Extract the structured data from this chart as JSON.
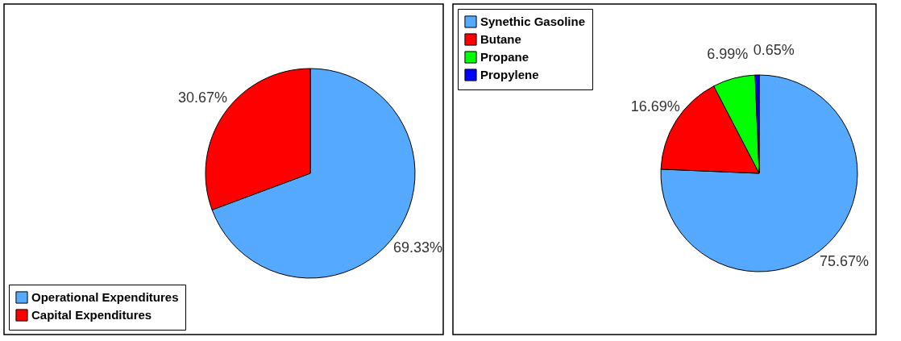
{
  "chart_data": [
    {
      "type": "pie",
      "categories": [
        "Operational Expenditures",
        "Capital Expenditures"
      ],
      "values": [
        69.33,
        30.67
      ],
      "colors": [
        "#55aaff",
        "#ff0000"
      ],
      "value_labels": [
        "69.33%",
        "30.67%"
      ],
      "legend": "bottom left"
    },
    {
      "type": "pie",
      "categories": [
        "Synethic Gasoline",
        "Butane",
        "Propane",
        "Propylene"
      ],
      "values": [
        75.67,
        16.69,
        6.99,
        0.65
      ],
      "colors": [
        "#55aaff",
        "#ff0000",
        "#00ff00",
        "#0000ff"
      ],
      "value_labels": [
        "75.67%",
        "16.69%",
        "6.99%",
        "0.65%"
      ],
      "legend": "top left"
    }
  ]
}
